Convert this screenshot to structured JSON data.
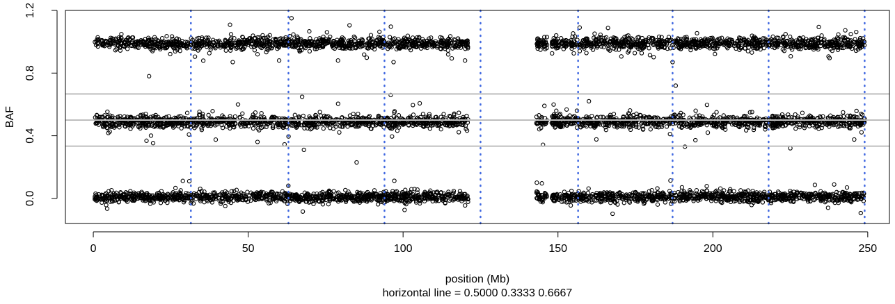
{
  "chart_data": {
    "type": "scatter",
    "xlabel": "position (Mb)",
    "ylabel": "BAF",
    "subtitle": "horizontal line =  0.5000 0.3333 0.6667",
    "xlim": [
      -9,
      257
    ],
    "ylim": [
      -0.16,
      1.2
    ],
    "x_ticks": [
      0,
      50,
      100,
      150,
      200,
      250
    ],
    "x_tick_labels": [
      "0",
      "50",
      "100",
      "150",
      "200",
      "250"
    ],
    "y_ticks": [
      0.0,
      0.4,
      0.8,
      1.2
    ],
    "y_tick_labels": [
      "0.0",
      "0.4",
      "0.8",
      "1.2"
    ],
    "horizontal_lines": [
      0.5,
      0.3333,
      0.6667
    ],
    "vertical_lines": [
      31.5,
      63,
      94,
      125,
      156.5,
      187,
      218,
      249
    ],
    "grid": false,
    "series": [
      {
        "marker": "open-circle",
        "color": "#000000",
        "clusters": [
          {
            "x_range": [
              0.5,
              121
            ],
            "center": 0.99,
            "spread": 0.035
          },
          {
            "x_range": [
              0.5,
              121
            ],
            "center": 0.49,
            "spread": 0.035
          },
          {
            "x_range": [
              0.5,
              121
            ],
            "center": 0.01,
            "spread": 0.03
          },
          {
            "x_range": [
              143,
              249
            ],
            "center": 0.99,
            "spread": 0.035
          },
          {
            "x_range": [
              143,
              249
            ],
            "center": 0.49,
            "spread": 0.035
          },
          {
            "x_range": [
              143,
              249
            ],
            "center": 0.01,
            "spread": 0.03
          }
        ],
        "outliers": [
          {
            "x": 18,
            "y": 0.78
          },
          {
            "x": 45,
            "y": 0.87
          },
          {
            "x": 53,
            "y": 0.92
          },
          {
            "x": 60,
            "y": 0.88
          },
          {
            "x": 64,
            "y": 1.15
          },
          {
            "x": 68,
            "y": 0.31
          },
          {
            "x": 79,
            "y": 0.88
          },
          {
            "x": 85,
            "y": 0.23
          },
          {
            "x": 96,
            "y": 0.66
          },
          {
            "x": 120,
            "y": 0.88
          },
          {
            "x": 187,
            "y": 0.87
          },
          {
            "x": 188,
            "y": 0.72
          },
          {
            "x": 191,
            "y": 0.33
          },
          {
            "x": 225,
            "y": 0.32
          },
          {
            "x": 31,
            "y": 0.11
          },
          {
            "x": 160,
            "y": 0.62
          }
        ]
      }
    ]
  }
}
